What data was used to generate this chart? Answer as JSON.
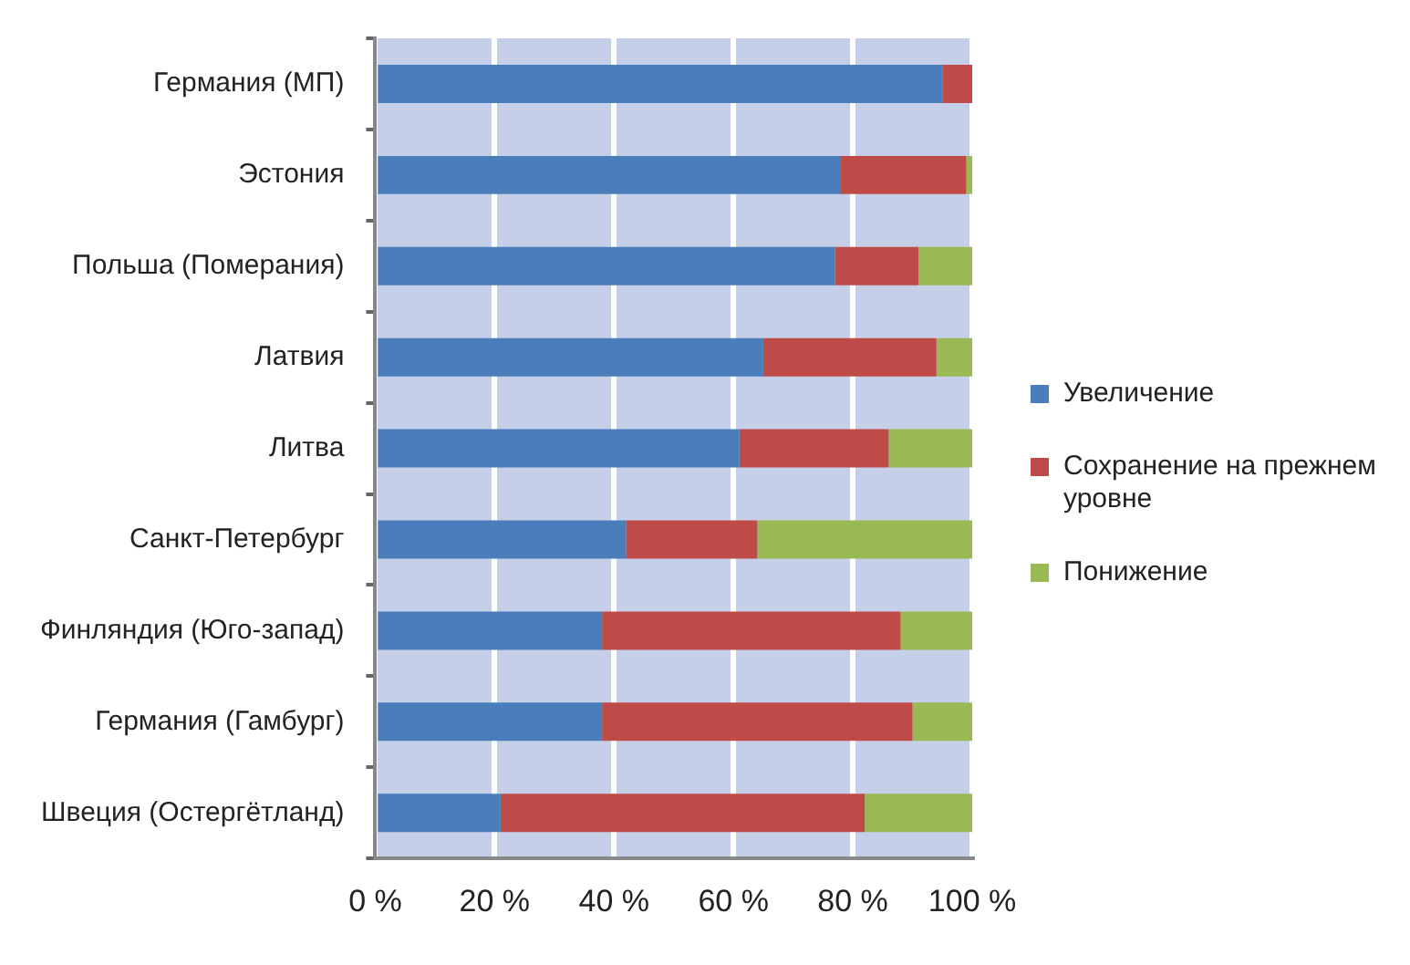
{
  "chart_data": {
    "type": "bar",
    "orientation": "horizontal",
    "stacked": true,
    "categories": [
      "Германия (МП)",
      "Эстония",
      "Польша (Померания)",
      "Латвия",
      "Литва",
      "Санкт-Петербург",
      "Финляндия (Юго-запад)",
      "Германия (Гамбург)",
      "Швеция (Остергётланд)"
    ],
    "series": [
      {
        "name": "Увеличение",
        "color": "#4a7ebb",
        "values": [
          95,
          78,
          77,
          65,
          61,
          42,
          38,
          38,
          21
        ]
      },
      {
        "name": "Сохранение на прежнем уровне",
        "color": "#be4b48",
        "values": [
          5,
          21,
          14,
          29,
          25,
          22,
          50,
          52,
          61
        ]
      },
      {
        "name": "Понижение",
        "color": "#98b954",
        "values": [
          0,
          1,
          9,
          6,
          14,
          36,
          12,
          10,
          18
        ]
      }
    ],
    "xlim": [
      0,
      100
    ],
    "xticks": [
      {
        "value": 0,
        "label": "0 %"
      },
      {
        "value": 20,
        "label": "20 %"
      },
      {
        "value": 40,
        "label": "40 %"
      },
      {
        "value": 60,
        "label": "60 %"
      },
      {
        "value": 80,
        "label": "80 %"
      },
      {
        "value": 100,
        "label": "100 %"
      }
    ],
    "grid": "x",
    "legend": "right"
  }
}
